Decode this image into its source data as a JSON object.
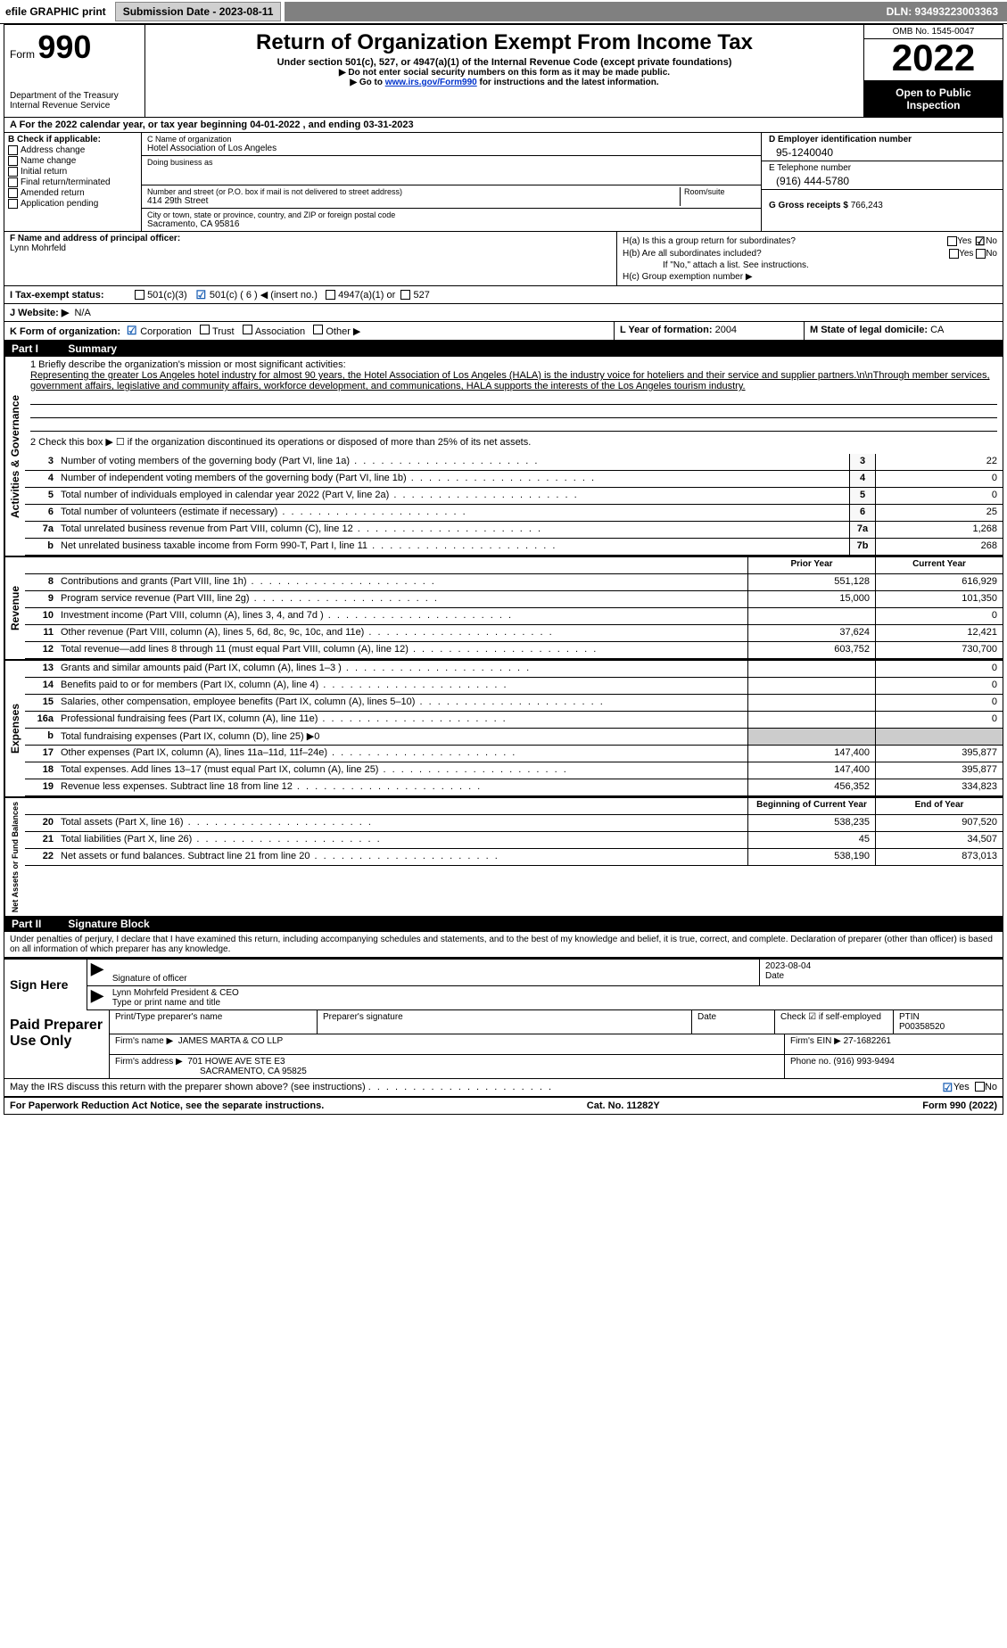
{
  "topbar": {
    "efile_label": "efile GRAPHIC print",
    "submission_label": "Submission Date - 2023-08-11",
    "dln": "DLN: 93493223003363"
  },
  "header": {
    "form_label": "Form",
    "form_number": "990",
    "dept": "Department of the Treasury",
    "irs": "Internal Revenue Service",
    "title": "Return of Organization Exempt From Income Tax",
    "subtitle": "Under section 501(c), 527, or 4947(a)(1) of the Internal Revenue Code (except private foundations)",
    "note1": "▶ Do not enter social security numbers on this form as it may be made public.",
    "note2_pre": "▶ Go to ",
    "note2_link": "www.irs.gov/Form990",
    "note2_post": " for instructions and the latest information.",
    "omb": "OMB No. 1545-0047",
    "year": "2022",
    "open": "Open to Public Inspection"
  },
  "row_a": "A For the 2022 calendar year, or tax year beginning 04-01-2022    , and ending 03-31-2023",
  "section_b": {
    "label": "B Check if applicable:",
    "items": [
      "Address change",
      "Name change",
      "Initial return",
      "Final return/terminated",
      "Amended return",
      "Application pending"
    ]
  },
  "section_c": {
    "name_label": "C Name of organization",
    "name": "Hotel Association of Los Angeles",
    "dba_label": "Doing business as",
    "dba": "",
    "addr_label": "Number and street (or P.O. box if mail is not delivered to street address)",
    "room_label": "Room/suite",
    "addr": "414 29th Street",
    "city_label": "City or town, state or province, country, and ZIP or foreign postal code",
    "city": "Sacramento, CA  95816"
  },
  "section_d": {
    "ein_label": "D Employer identification number",
    "ein": "95-1240040",
    "phone_label": "E Telephone number",
    "phone": "(916) 444-5780",
    "gross_label": "G Gross receipts $",
    "gross": "766,243"
  },
  "section_f": {
    "label": "F Name and address of principal officer:",
    "name": "Lynn Mohrfeld"
  },
  "section_h": {
    "ha": "H(a)  Is this a group return for subordinates?",
    "hb": "H(b)  Are all subordinates included?",
    "hb_note": "If \"No,\" attach a list. See instructions.",
    "hc": "H(c)  Group exemption number ▶",
    "yes": "Yes",
    "no": "No"
  },
  "row_i": {
    "label": "I   Tax-exempt status:",
    "opt1": "501(c)(3)",
    "opt2": "501(c) ( 6 ) ◀ (insert no.)",
    "opt3": "4947(a)(1) or",
    "opt4": "527"
  },
  "row_j": {
    "label": "J   Website: ▶",
    "val": "N/A"
  },
  "row_k": {
    "label": "K Form of organization:",
    "opts": [
      "Corporation",
      "Trust",
      "Association",
      "Other ▶"
    ]
  },
  "row_l": {
    "yof_label": "L Year of formation:",
    "yof": "2004",
    "state_label": "M State of legal domicile:",
    "state": "CA"
  },
  "part1": {
    "header": "Part I",
    "title": "Summary",
    "line1_label": "1  Briefly describe the organization's mission or most significant activities:",
    "mission": "Representing the greater Los Angeles hotel industry for almost 90 years, the Hotel Association of Los Angeles (HALA) is the industry voice for hoteliers and their service and supplier partners.\\n\\nThrough member services, government affairs, legislative and community affairs, workforce development, and communications, HALA supports the interests of the Los Angeles tourism industry.",
    "line2": "2   Check this box ▶ ☐  if the organization discontinued its operations or disposed of more than 25% of its net assets.",
    "lines_gov": [
      {
        "n": "3",
        "t": "Number of voting members of the governing body (Part VI, line 1a)",
        "box": "3",
        "v": "22"
      },
      {
        "n": "4",
        "t": "Number of independent voting members of the governing body (Part VI, line 1b)",
        "box": "4",
        "v": "0"
      },
      {
        "n": "5",
        "t": "Total number of individuals employed in calendar year 2022 (Part V, line 2a)",
        "box": "5",
        "v": "0"
      },
      {
        "n": "6",
        "t": "Total number of volunteers (estimate if necessary)",
        "box": "6",
        "v": "25"
      },
      {
        "n": "7a",
        "t": "Total unrelated business revenue from Part VIII, column (C), line 12",
        "box": "7a",
        "v": "1,268"
      },
      {
        "n": "b",
        "t": "Net unrelated business taxable income from Form 990-T, Part I, line 11",
        "box": "7b",
        "v": "268"
      }
    ],
    "col_head_prior": "Prior Year",
    "col_head_current": "Current Year",
    "lines_rev": [
      {
        "n": "8",
        "t": "Contributions and grants (Part VIII, line 1h)",
        "p": "551,128",
        "c": "616,929"
      },
      {
        "n": "9",
        "t": "Program service revenue (Part VIII, line 2g)",
        "p": "15,000",
        "c": "101,350"
      },
      {
        "n": "10",
        "t": "Investment income (Part VIII, column (A), lines 3, 4, and 7d )",
        "p": "",
        "c": "0"
      },
      {
        "n": "11",
        "t": "Other revenue (Part VIII, column (A), lines 5, 6d, 8c, 9c, 10c, and 11e)",
        "p": "37,624",
        "c": "12,421"
      },
      {
        "n": "12",
        "t": "Total revenue—add lines 8 through 11 (must equal Part VIII, column (A), line 12)",
        "p": "603,752",
        "c": "730,700"
      }
    ],
    "lines_exp": [
      {
        "n": "13",
        "t": "Grants and similar amounts paid (Part IX, column (A), lines 1–3 )",
        "p": "",
        "c": "0"
      },
      {
        "n": "14",
        "t": "Benefits paid to or for members (Part IX, column (A), line 4)",
        "p": "",
        "c": "0"
      },
      {
        "n": "15",
        "t": "Salaries, other compensation, employee benefits (Part IX, column (A), lines 5–10)",
        "p": "",
        "c": "0"
      },
      {
        "n": "16a",
        "t": "Professional fundraising fees (Part IX, column (A), line 11e)",
        "p": "",
        "c": "0"
      },
      {
        "n": "b",
        "t": "Total fundraising expenses (Part IX, column (D), line 25) ▶0",
        "p": "—",
        "c": "—"
      },
      {
        "n": "17",
        "t": "Other expenses (Part IX, column (A), lines 11a–11d, 11f–24e)",
        "p": "147,400",
        "c": "395,877"
      },
      {
        "n": "18",
        "t": "Total expenses. Add lines 13–17 (must equal Part IX, column (A), line 25)",
        "p": "147,400",
        "c": "395,877"
      },
      {
        "n": "19",
        "t": "Revenue less expenses. Subtract line 18 from line 12",
        "p": "456,352",
        "c": "334,823"
      }
    ],
    "col_head_begin": "Beginning of Current Year",
    "col_head_end": "End of Year",
    "lines_net": [
      {
        "n": "20",
        "t": "Total assets (Part X, line 16)",
        "p": "538,235",
        "c": "907,520"
      },
      {
        "n": "21",
        "t": "Total liabilities (Part X, line 26)",
        "p": "45",
        "c": "34,507"
      },
      {
        "n": "22",
        "t": "Net assets or fund balances. Subtract line 21 from line 20",
        "p": "538,190",
        "c": "873,013"
      }
    ]
  },
  "side_labels": {
    "ag": "Activities & Governance",
    "rev": "Revenue",
    "exp": "Expenses",
    "net": "Net Assets or Fund Balances"
  },
  "part2": {
    "header": "Part II",
    "title": "Signature Block",
    "penalties": "Under penalties of perjury, I declare that I have examined this return, including accompanying schedules and statements, and to the best of my knowledge and belief, it is true, correct, and complete. Declaration of preparer (other than officer) is based on all information of which preparer has any knowledge.",
    "sign_here": "Sign Here",
    "sig_officer": "Signature of officer",
    "sig_date": "2023-08-04",
    "date_label": "Date",
    "officer_name": "Lynn Mohrfeld  President & CEO",
    "type_label": "Type or print name and title",
    "paid": "Paid Preparer Use Only",
    "prep_name_label": "Print/Type preparer's name",
    "prep_sig_label": "Preparer's signature",
    "prep_date_label": "Date",
    "check_if": "Check ☑ if self-employed",
    "ptin_label": "PTIN",
    "ptin": "P00358520",
    "firm_name_label": "Firm's name    ▶",
    "firm_name": "JAMES MARTA & CO LLP",
    "firm_ein_label": "Firm's EIN ▶",
    "firm_ein": "27-1682261",
    "firm_addr_label": "Firm's address ▶",
    "firm_addr1": "701 HOWE AVE STE E3",
    "firm_addr2": "SACRAMENTO, CA  95825",
    "firm_phone_label": "Phone no.",
    "firm_phone": "(916) 993-9494",
    "discuss": "May the IRS discuss this return with the preparer shown above? (see instructions)",
    "yes": "Yes",
    "no": "No"
  },
  "footer": {
    "left": "For Paperwork Reduction Act Notice, see the separate instructions.",
    "mid": "Cat. No. 11282Y",
    "right": "Form 990 (2022)"
  }
}
